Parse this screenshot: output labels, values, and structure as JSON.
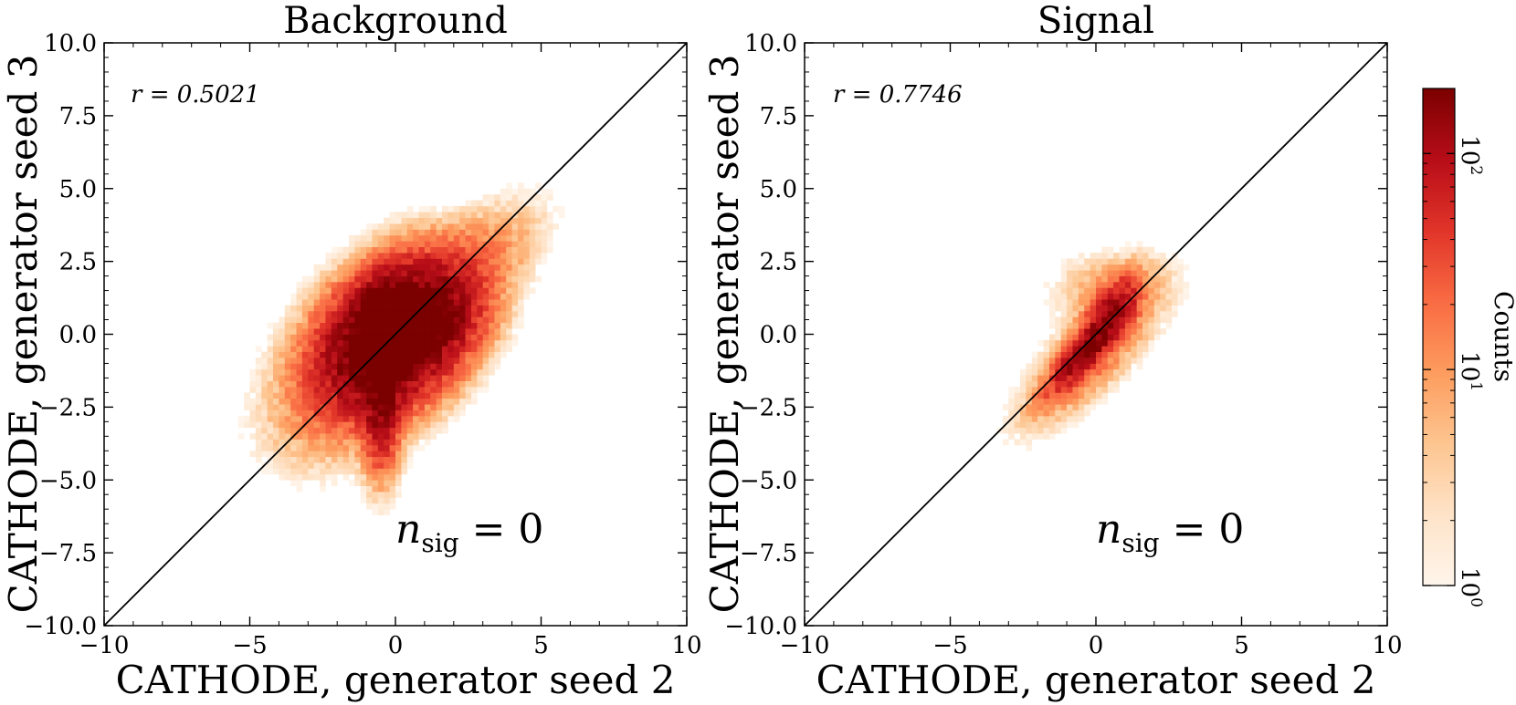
{
  "chart_data": [
    {
      "type": "heatmap",
      "title": "Background",
      "xlabel": "CATHODE, generator seed 2",
      "ylabel": "CATHODE, generator seed 3",
      "xlim": [
        -10,
        10
      ],
      "ylim": [
        -10,
        10
      ],
      "x_ticks": [
        -10,
        -5,
        0,
        5,
        10
      ],
      "x_tick_labels": [
        "−10",
        "−5",
        "0",
        "5",
        "10"
      ],
      "y_ticks": [
        -10,
        -7.5,
        -5,
        -2.5,
        0,
        2.5,
        5,
        7.5,
        10
      ],
      "y_tick_labels": [
        "−10.0",
        "−7.5",
        "−5.0",
        "−2.5",
        "0.0",
        "2.5",
        "5.0",
        "7.5",
        "10.0"
      ],
      "diagonal_line": true,
      "r_label": "r = 0.5021",
      "nsig_label": {
        "base": "n",
        "sub": "sig",
        "rest": " = 0"
      },
      "density_blobs": [
        {
          "cx": 0.0,
          "cy": 0.0,
          "sx": 1.25,
          "sy": 1.25,
          "rho": 0.35,
          "w": 450
        },
        {
          "cx": -0.5,
          "cy": 0.2,
          "sx": 0.35,
          "sy": 0.8,
          "rho": 0.0,
          "w": 300
        },
        {
          "cx": -0.5,
          "cy": -2.0,
          "sx": 0.35,
          "sy": 1.3,
          "rho": 0.0,
          "w": 160
        },
        {
          "cx": 0.5,
          "cy": 0.4,
          "sx": 1.0,
          "sy": 0.5,
          "rho": 0.0,
          "w": 220
        },
        {
          "cx": 1.8,
          "cy": 1.5,
          "sx": 1.5,
          "sy": 1.4,
          "rho": 0.7,
          "w": 24
        },
        {
          "cx": -1.5,
          "cy": -1.5,
          "sx": 1.5,
          "sy": 1.5,
          "rho": 0.4,
          "w": 20
        }
      ]
    },
    {
      "type": "heatmap",
      "title": "Signal",
      "xlabel": "CATHODE, generator seed 2",
      "ylabel": "CATHODE, generator seed 3",
      "xlim": [
        -10,
        10
      ],
      "ylim": [
        -10,
        10
      ],
      "x_ticks": [
        -10,
        -5,
        0,
        5,
        10
      ],
      "x_tick_labels": [
        "−10",
        "−5",
        "0",
        "5",
        "10"
      ],
      "y_ticks": [
        -10,
        -7.5,
        -5,
        -2.5,
        0,
        2.5,
        5,
        7.5,
        10
      ],
      "y_tick_labels": [
        "−10.0",
        "−7.5",
        "−5.0",
        "−2.5",
        "0.0",
        "2.5",
        "5.0",
        "7.5",
        "10.0"
      ],
      "diagonal_line": true,
      "r_label": "r = 0.7746",
      "nsig_label": {
        "base": "n",
        "sub": "sig",
        "rest": " = 0"
      },
      "density_blobs": [
        {
          "cx": -0.2,
          "cy": -0.4,
          "sx": 0.75,
          "sy": 0.85,
          "rho": 0.88,
          "w": 160
        },
        {
          "cx": 0.5,
          "cy": 0.8,
          "sx": 0.5,
          "sy": 0.7,
          "rho": 0.6,
          "w": 90
        },
        {
          "cx": -0.1,
          "cy": -0.6,
          "sx": 1.1,
          "sy": 1.2,
          "rho": 0.75,
          "w": 22
        },
        {
          "cx": 0.3,
          "cy": 1.5,
          "sx": 1.0,
          "sy": 0.7,
          "rho": 0.0,
          "w": 7
        },
        {
          "cx": 0.0,
          "cy": -0.5,
          "sx": 2.2,
          "sy": 2.0,
          "rho": 0.85,
          "w": 1.6
        }
      ]
    }
  ],
  "colorbar": {
    "label": "Counts",
    "scale": "log",
    "range": [
      1,
      200
    ],
    "ticks": [
      {
        "value": 1,
        "base": "10",
        "exp": "0"
      },
      {
        "value": 10,
        "base": "10",
        "exp": "1"
      },
      {
        "value": 100,
        "base": "10",
        "exp": "2"
      }
    ],
    "colors": [
      "#fff5eb",
      "#fee3c8",
      "#fdc590",
      "#fd9c5e",
      "#f96b43",
      "#e13429",
      "#b70d18",
      "#7b0000"
    ]
  }
}
